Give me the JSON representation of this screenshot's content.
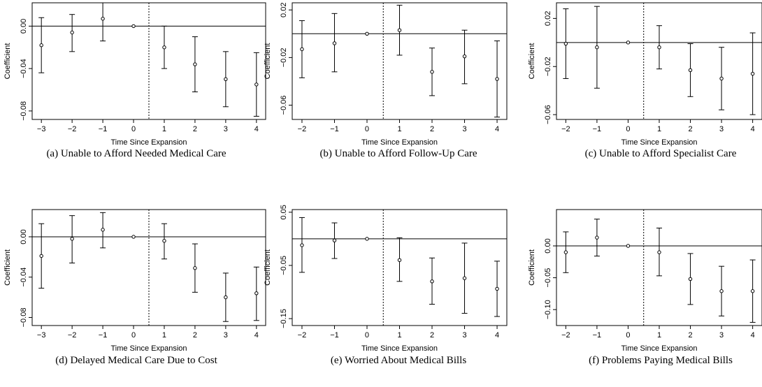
{
  "chart_data": [
    {
      "type": "scatter",
      "caption": "(a) Unable to Afford Needed Medical Care",
      "xlabel": "Time Since Expansion",
      "ylabel": "Coefficient",
      "xlim": [
        -3.3,
        4.3
      ],
      "ylim": [
        -0.088,
        0.022
      ],
      "xticks": [
        -3,
        -2,
        -1,
        0,
        1,
        2,
        3,
        4
      ],
      "yticks": [
        0.0,
        -0.04,
        -0.08
      ],
      "ytick_labels": [
        "0.00",
        "−0.04",
        "−0.08"
      ],
      "reference_line_y": 0,
      "treatment_line_x": 0.5,
      "points": [
        {
          "x": -3,
          "y": -0.018,
          "lo": -0.044,
          "hi": 0.008
        },
        {
          "x": -2,
          "y": -0.006,
          "lo": -0.024,
          "hi": 0.011
        },
        {
          "x": -1,
          "y": 0.007,
          "lo": -0.014,
          "hi": 0.028
        },
        {
          "x": 0,
          "y": 0.0,
          "lo": null,
          "hi": null
        },
        {
          "x": 1,
          "y": -0.02,
          "lo": -0.04,
          "hi": 0.0
        },
        {
          "x": 2,
          "y": -0.036,
          "lo": -0.062,
          "hi": -0.01
        },
        {
          "x": 3,
          "y": -0.05,
          "lo": -0.076,
          "hi": -0.024
        },
        {
          "x": 4,
          "y": -0.055,
          "lo": -0.085,
          "hi": -0.025
        }
      ]
    },
    {
      "type": "scatter",
      "caption": "(b) Unable to Afford Follow-Up Care",
      "xlabel": "Time Since Expansion",
      "ylabel": "Coefficient",
      "xlim": [
        -2.3,
        4.3
      ],
      "ylim": [
        -0.072,
        0.026
      ],
      "xticks": [
        -2,
        -1,
        0,
        1,
        2,
        3,
        4
      ],
      "yticks": [
        0.02,
        -0.02,
        -0.06
      ],
      "ytick_labels": [
        "0.02",
        "−0.02",
        "−0.06"
      ],
      "reference_line_y": 0,
      "treatment_line_x": 0.5,
      "points": [
        {
          "x": -2,
          "y": -0.013,
          "lo": -0.037,
          "hi": 0.011
        },
        {
          "x": -1,
          "y": -0.008,
          "lo": -0.032,
          "hi": 0.017
        },
        {
          "x": 0,
          "y": 0.0,
          "lo": null,
          "hi": null
        },
        {
          "x": 1,
          "y": 0.003,
          "lo": -0.018,
          "hi": 0.024
        },
        {
          "x": 2,
          "y": -0.032,
          "lo": -0.052,
          "hi": -0.012
        },
        {
          "x": 3,
          "y": -0.019,
          "lo": -0.042,
          "hi": 0.003
        },
        {
          "x": 4,
          "y": -0.038,
          "lo": -0.07,
          "hi": -0.006
        }
      ]
    },
    {
      "type": "scatter",
      "caption": "(c) Unable to Afford Specialist Care",
      "xlabel": "Time Since Expansion",
      "ylabel": "Coefficient",
      "xlim": [
        -2.3,
        4.3
      ],
      "ylim": [
        -0.064,
        0.033
      ],
      "xticks": [
        -2,
        -1,
        0,
        1,
        2,
        3,
        4
      ],
      "yticks": [
        0.02,
        -0.02,
        -0.06
      ],
      "ytick_labels": [
        "0.02",
        "−0.02",
        "−0.06"
      ],
      "reference_line_y": 0,
      "treatment_line_x": 0.5,
      "points": [
        {
          "x": -2,
          "y": -0.001,
          "lo": -0.03,
          "hi": 0.028
        },
        {
          "x": -1,
          "y": -0.004,
          "lo": -0.038,
          "hi": 0.03
        },
        {
          "x": 0,
          "y": 0.0,
          "lo": null,
          "hi": null
        },
        {
          "x": 1,
          "y": -0.004,
          "lo": -0.022,
          "hi": 0.014
        },
        {
          "x": 2,
          "y": -0.023,
          "lo": -0.045,
          "hi": -0.001
        },
        {
          "x": 3,
          "y": -0.03,
          "lo": -0.056,
          "hi": -0.004
        },
        {
          "x": 4,
          "y": -0.026,
          "lo": -0.06,
          "hi": 0.008
        }
      ]
    },
    {
      "type": "scatter",
      "caption": "(d) Delayed Medical Care Due to Cost",
      "xlabel": "Time Since Expansion",
      "ylabel": "Coefficient",
      "xlim": [
        -3.3,
        4.3
      ],
      "ylim": [
        -0.088,
        0.027
      ],
      "xticks": [
        -3,
        -2,
        -1,
        0,
        1,
        2,
        3,
        4
      ],
      "yticks": [
        0.0,
        -0.04,
        -0.08
      ],
      "ytick_labels": [
        "0.00",
        "−0.04",
        "−0.08"
      ],
      "reference_line_y": 0,
      "treatment_line_x": 0.5,
      "points": [
        {
          "x": -3,
          "y": -0.019,
          "lo": -0.051,
          "hi": 0.013
        },
        {
          "x": -2,
          "y": -0.002,
          "lo": -0.026,
          "hi": 0.021
        },
        {
          "x": -1,
          "y": 0.007,
          "lo": -0.011,
          "hi": 0.024
        },
        {
          "x": 0,
          "y": 0.0,
          "lo": null,
          "hi": null
        },
        {
          "x": 1,
          "y": -0.004,
          "lo": -0.022,
          "hi": 0.013
        },
        {
          "x": 2,
          "y": -0.031,
          "lo": -0.055,
          "hi": -0.007
        },
        {
          "x": 3,
          "y": -0.06,
          "lo": -0.084,
          "hi": -0.036
        },
        {
          "x": 4,
          "y": -0.056,
          "lo": -0.083,
          "hi": -0.03
        }
      ]
    },
    {
      "type": "scatter",
      "caption": "(e) Worried About Medical Bills",
      "xlabel": "Time Since Expansion",
      "ylabel": "Coefficient",
      "xlim": [
        -2.3,
        4.3
      ],
      "ylim": [
        -0.163,
        0.055
      ],
      "xticks": [
        -2,
        -1,
        0,
        1,
        2,
        3,
        4
      ],
      "yticks": [
        0.05,
        -0.05,
        -0.15
      ],
      "ytick_labels": [
        "0.05",
        "−0.05",
        "−0.15"
      ],
      "reference_line_y": 0,
      "treatment_line_x": 0.5,
      "points": [
        {
          "x": -2,
          "y": -0.012,
          "lo": -0.063,
          "hi": 0.04
        },
        {
          "x": -1,
          "y": -0.003,
          "lo": -0.037,
          "hi": 0.03
        },
        {
          "x": 0,
          "y": 0.0,
          "lo": null,
          "hi": null
        },
        {
          "x": 1,
          "y": -0.04,
          "lo": -0.08,
          "hi": 0.002
        },
        {
          "x": 2,
          "y": -0.08,
          "lo": -0.123,
          "hi": -0.036
        },
        {
          "x": 3,
          "y": -0.074,
          "lo": -0.14,
          "hi": -0.008
        },
        {
          "x": 4,
          "y": -0.094,
          "lo": -0.146,
          "hi": -0.042
        }
      ]
    },
    {
      "type": "scatter",
      "caption": "(f) Problems Paying Medical Bills",
      "xlabel": "Time Since Expansion",
      "ylabel": "Coefficient",
      "xlim": [
        -2.3,
        4.3
      ],
      "ylim": [
        -0.125,
        0.057
      ],
      "xticks": [
        -2,
        -1,
        0,
        1,
        2,
        3,
        4
      ],
      "yticks": [
        0.0,
        -0.05,
        -0.1
      ],
      "ytick_labels": [
        "0.00",
        "−0.05",
        "−0.10"
      ],
      "reference_line_y": 0,
      "treatment_line_x": 0.5,
      "points": [
        {
          "x": -2,
          "y": -0.01,
          "lo": -0.042,
          "hi": 0.022
        },
        {
          "x": -1,
          "y": 0.013,
          "lo": -0.016,
          "hi": 0.042
        },
        {
          "x": 0,
          "y": 0.0,
          "lo": null,
          "hi": null
        },
        {
          "x": 1,
          "y": -0.01,
          "lo": -0.047,
          "hi": 0.028
        },
        {
          "x": 2,
          "y": -0.052,
          "lo": -0.092,
          "hi": -0.012
        },
        {
          "x": 3,
          "y": -0.071,
          "lo": -0.11,
          "hi": -0.032
        },
        {
          "x": 4,
          "y": -0.071,
          "lo": -0.12,
          "hi": -0.022
        }
      ]
    }
  ]
}
